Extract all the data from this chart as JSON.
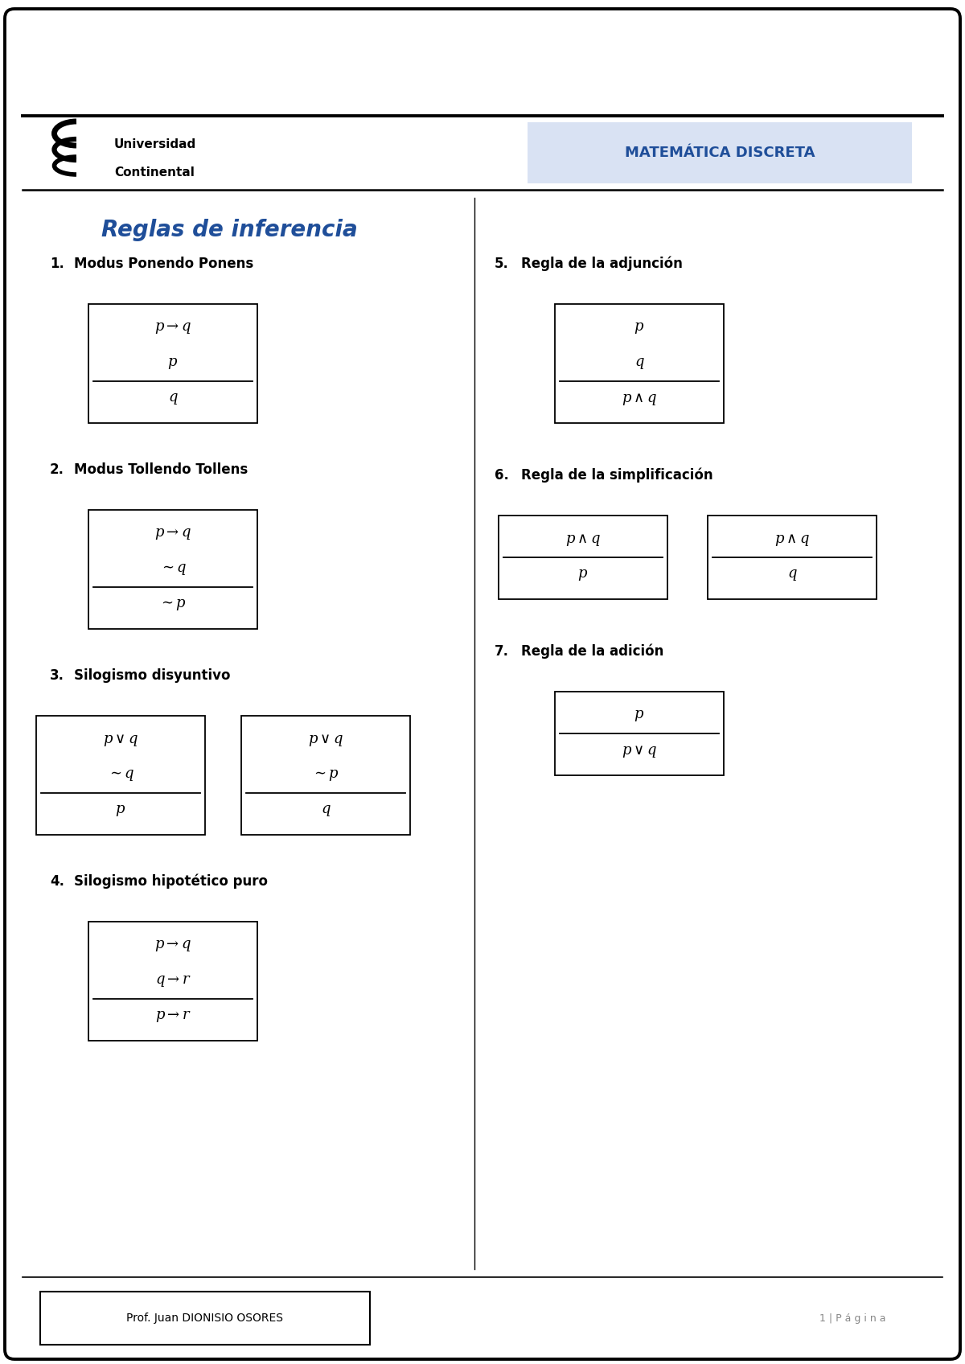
{
  "title": "Reglas de inferencia",
  "title_color": "#1F4E99",
  "header_text1": "Universidad",
  "header_text2": "Continental",
  "header_subject": "MATEMÁTICA DISCRETA",
  "header_subject_color": "#1F4E99",
  "header_bg_color": "#D9E2F3",
  "footer_text": "Prof. Juan DIONISIO OSORES",
  "footer_page": "1 | P á g i n a",
  "rules": [
    {
      "number": "1.",
      "name": "Modus Ponendo Ponens",
      "boxes": [
        {
          "lines": [
            "$p \\rightarrow q$",
            "$p$",
            "$q$"
          ],
          "separator_after": 1
        }
      ]
    },
    {
      "number": "2.",
      "name": "Modus Tollendo Tollens",
      "boxes": [
        {
          "lines": [
            "$p \\rightarrow q$",
            "$\\sim q$",
            "$\\sim p$"
          ],
          "separator_after": 1
        }
      ]
    },
    {
      "number": "3.",
      "name": "Silogismo disyuntivo",
      "boxes": [
        {
          "lines": [
            "$p \\vee q$",
            "$\\sim q$",
            "$p$"
          ],
          "separator_after": 1
        },
        {
          "lines": [
            "$p \\vee q$",
            "$\\sim p$",
            "$q$"
          ],
          "separator_after": 1
        }
      ]
    },
    {
      "number": "4.",
      "name": "Silogismo hipotético puro",
      "boxes": [
        {
          "lines": [
            "$p \\rightarrow q$",
            "$q \\rightarrow r$",
            "$p \\rightarrow r$"
          ],
          "separator_after": 1
        }
      ]
    }
  ],
  "rules_right": [
    {
      "number": "5.",
      "name": "Regla de la adjunción",
      "boxes": [
        {
          "lines": [
            "$p$",
            "$q$",
            "$p \\wedge q$"
          ],
          "separator_after": 1
        }
      ]
    },
    {
      "number": "6.",
      "name": "Regla de la simplificación",
      "boxes": [
        {
          "lines": [
            "$p \\wedge q$",
            "$p$"
          ],
          "separator_after": 0
        },
        {
          "lines": [
            "$p \\wedge q$",
            "$q$"
          ],
          "separator_after": 0
        }
      ]
    },
    {
      "number": "7.",
      "name": "Regla de la adición",
      "boxes": [
        {
          "lines": [
            "$p$",
            "$p \\vee q$"
          ],
          "separator_after": 0
        }
      ]
    }
  ]
}
